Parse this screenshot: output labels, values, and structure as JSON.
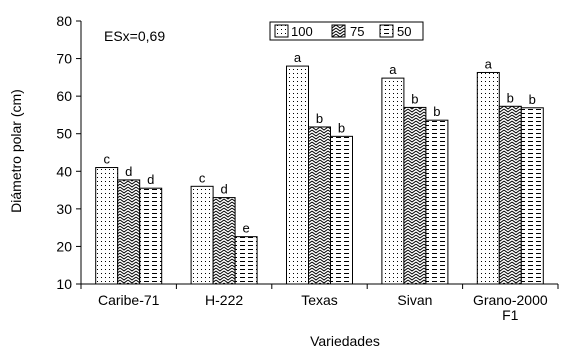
{
  "chart_data": {
    "type": "bar",
    "title": "",
    "annotation": "ESx=0,69",
    "xlabel": "Variedades",
    "ylabel": "Diámetro polar (cm)",
    "ylim": [
      10,
      80
    ],
    "yticks": [
      10,
      20,
      30,
      40,
      50,
      60,
      70,
      80
    ],
    "grid": false,
    "legend_position": "top-center",
    "categories": [
      [
        "Caribe-71"
      ],
      [
        "H-222"
      ],
      [
        "Texas"
      ],
      [
        "Sivan"
      ],
      [
        "Grano-2000",
        "F1"
      ]
    ],
    "series": [
      {
        "name": "100",
        "pattern": "dots",
        "values": [
          41.0,
          36.0,
          68.0,
          64.8,
          66.3
        ],
        "labels": [
          "c",
          "c",
          "a",
          "a",
          "a"
        ]
      },
      {
        "name": "75",
        "pattern": "zigzag",
        "values": [
          37.7,
          33.0,
          51.8,
          57.0,
          57.3
        ],
        "labels": [
          "d",
          "d",
          "b",
          "b",
          "b"
        ]
      },
      {
        "name": "50",
        "pattern": "dashes",
        "values": [
          35.5,
          22.6,
          49.3,
          53.6,
          56.9
        ],
        "labels": [
          "d",
          "e",
          "b",
          "b",
          "b"
        ]
      }
    ]
  }
}
